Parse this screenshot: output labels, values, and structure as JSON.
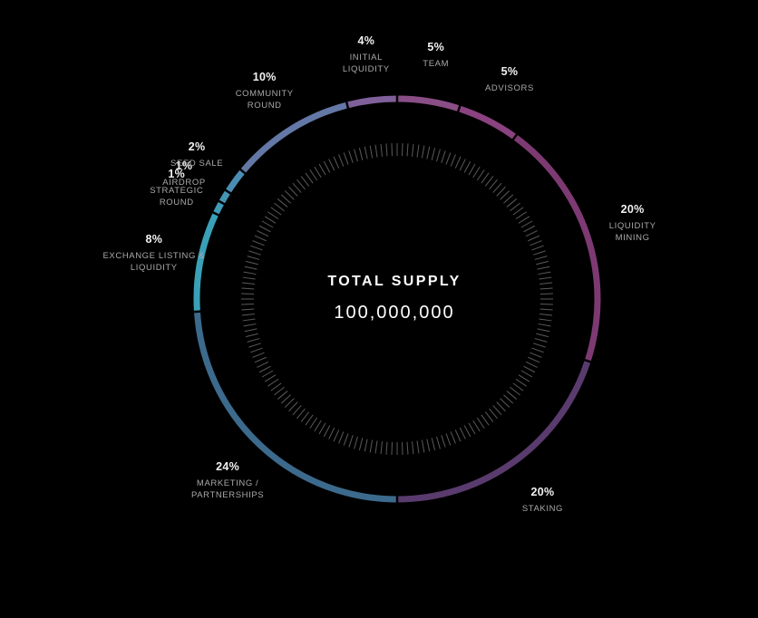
{
  "chart_data": {
    "type": "pie",
    "center": {
      "title": "TOTAL SUPPLY",
      "value": "100,000,000"
    },
    "slices": [
      {
        "label": "TEAM",
        "value": 5,
        "pct_label": "5%",
        "color": "#8a4e86"
      },
      {
        "label": "ADVISORS",
        "value": 5,
        "pct_label": "5%",
        "color": "#8a4280"
      },
      {
        "label": "LIQUIDITY\nMINING",
        "value": 20,
        "pct_label": "20%",
        "color": "#7d3a72"
      },
      {
        "label": "STAKING",
        "value": 20,
        "pct_label": "20%",
        "color": "#5a3b6e"
      },
      {
        "label": "MARKETING /\nPARTNERSHIPS",
        "value": 24,
        "pct_label": "24%",
        "color": "#3c6a8c"
      },
      {
        "label": "EXCHANGE LISTING &\nLIQUIDITY",
        "value": 8,
        "pct_label": "8%",
        "color": "#3aa0b8"
      },
      {
        "label": "STRATEGIC\nROUND",
        "value": 1,
        "pct_label": "1%",
        "color": "#3f9bb8"
      },
      {
        "label": "AIRDROP",
        "value": 1,
        "pct_label": "1%",
        "color": "#4494b6"
      },
      {
        "label": "SEED SALE",
        "value": 2,
        "pct_label": "2%",
        "color": "#4b8cb4"
      },
      {
        "label": "COMMUNITY\nROUND",
        "value": 10,
        "pct_label": "10%",
        "color": "#6478a6"
      },
      {
        "label": "INITIAL\nLIQUIDITY",
        "value": 4,
        "pct_label": "4%",
        "color": "#80609a"
      }
    ]
  }
}
